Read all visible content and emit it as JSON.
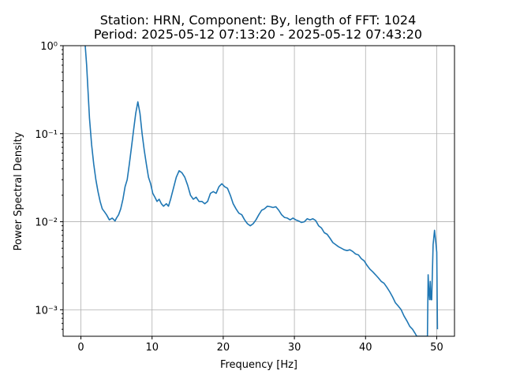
{
  "chart_data": {
    "type": "line",
    "title_line1": "Station: HRN, Component: By, length of FFT: 1024",
    "title_line2": "Period: 2025-05-12 07:13:20 - 2025-05-12 07:43:20",
    "xlabel": "Frequency [Hz]",
    "ylabel": "Power Spectral Density",
    "xlim": [
      -2.5,
      52.5
    ],
    "ylim": [
      0.0005,
      1
    ],
    "yscale": "log",
    "grid": true,
    "line_color": "#1f77b4",
    "x_ticks": [
      {
        "value": 0,
        "label": "0"
      },
      {
        "value": 10,
        "label": "10"
      },
      {
        "value": 20,
        "label": "20"
      },
      {
        "value": 30,
        "label": "30"
      },
      {
        "value": 40,
        "label": "40"
      },
      {
        "value": 50,
        "label": "50"
      }
    ],
    "y_ticks": [
      {
        "value": 0.001,
        "label": "10⁻³"
      },
      {
        "value": 0.01,
        "label": "10⁻²"
      },
      {
        "value": 0.1,
        "label": "10⁻¹"
      },
      {
        "value": 1,
        "label": "10⁰"
      }
    ],
    "series": [
      {
        "x": [
          0.6,
          0.8,
          1.0,
          1.2,
          1.5,
          1.8,
          2.1,
          2.4,
          2.7,
          3.0,
          3.3,
          3.6,
          4.0,
          4.4,
          4.8,
          5.0,
          5.3,
          5.6,
          5.9,
          6.2,
          6.5,
          6.8,
          7.1,
          7.4,
          7.7,
          8.0,
          8.3,
          8.6,
          8.9,
          9.2,
          9.5,
          9.8,
          10.1,
          10.4,
          10.7,
          11.0,
          11.3,
          11.6,
          12.0,
          12.3,
          12.6,
          13.0,
          13.4,
          13.8,
          14.2,
          14.6,
          15.0,
          15.4,
          15.8,
          16.2,
          16.6,
          17.0,
          17.4,
          17.8,
          18.2,
          18.6,
          19.0,
          19.4,
          19.8,
          20.2,
          20.6,
          21.0,
          21.4,
          21.8,
          22.2,
          22.6,
          23.0,
          23.4,
          23.8,
          24.2,
          24.6,
          25.0,
          25.4,
          25.8,
          26.2,
          26.6,
          27.0,
          27.4,
          27.8,
          28.2,
          28.6,
          29.0,
          29.4,
          29.8,
          30.2,
          30.6,
          31.0,
          31.4,
          31.8,
          32.2,
          32.6,
          33.0,
          33.4,
          33.8,
          34.2,
          34.6,
          35.0,
          35.4,
          35.8,
          36.2,
          36.6,
          37.0,
          37.4,
          37.8,
          38.2,
          38.6,
          39.0,
          39.4,
          39.8,
          40.2,
          40.6,
          41.0,
          41.4,
          41.8,
          42.2,
          42.6,
          43.0,
          43.4,
          43.8,
          44.2,
          44.6,
          45.0,
          45.4,
          45.8,
          46.2,
          46.6,
          46.9,
          47.2,
          47.6,
          48.0,
          48.3,
          48.5,
          48.6,
          48.7,
          48.8,
          48.9,
          49.0,
          49.1,
          49.2,
          49.3,
          49.5,
          49.7,
          49.9,
          50.0,
          50.1
        ],
        "y": [
          1.0,
          0.6,
          0.3,
          0.15,
          0.075,
          0.045,
          0.03,
          0.022,
          0.017,
          0.014,
          0.013,
          0.012,
          0.0105,
          0.011,
          0.0102,
          0.011,
          0.012,
          0.014,
          0.018,
          0.025,
          0.03,
          0.045,
          0.07,
          0.11,
          0.17,
          0.23,
          0.17,
          0.1,
          0.065,
          0.045,
          0.032,
          0.027,
          0.021,
          0.019,
          0.017,
          0.018,
          0.016,
          0.015,
          0.016,
          0.015,
          0.018,
          0.024,
          0.032,
          0.038,
          0.036,
          0.032,
          0.026,
          0.02,
          0.018,
          0.019,
          0.017,
          0.017,
          0.016,
          0.017,
          0.021,
          0.022,
          0.021,
          0.025,
          0.027,
          0.025,
          0.024,
          0.02,
          0.016,
          0.014,
          0.0125,
          0.012,
          0.0105,
          0.0095,
          0.009,
          0.0095,
          0.0105,
          0.012,
          0.0135,
          0.014,
          0.015,
          0.0148,
          0.0145,
          0.0148,
          0.0135,
          0.012,
          0.0112,
          0.011,
          0.0105,
          0.011,
          0.0105,
          0.0102,
          0.0098,
          0.01,
          0.0108,
          0.0105,
          0.0108,
          0.0103,
          0.009,
          0.0085,
          0.0075,
          0.0072,
          0.0065,
          0.0058,
          0.0055,
          0.0052,
          0.005,
          0.0048,
          0.0047,
          0.0048,
          0.0046,
          0.0043,
          0.0042,
          0.0038,
          0.0036,
          0.0032,
          0.0029,
          0.0027,
          0.0025,
          0.0023,
          0.0021,
          0.002,
          0.0018,
          0.0016,
          0.0014,
          0.0012,
          0.0011,
          0.001,
          0.00085,
          0.00075,
          0.00065,
          0.0006,
          0.00055,
          0.0005,
          0.0005,
          0.0005,
          0.0005,
          0.0005,
          0.0005,
          0.0005,
          0.0025,
          0.0016,
          0.0013,
          0.0021,
          0.0013,
          0.0013,
          0.0055,
          0.008,
          0.0055,
          0.0045,
          0.0006
        ]
      }
    ]
  }
}
